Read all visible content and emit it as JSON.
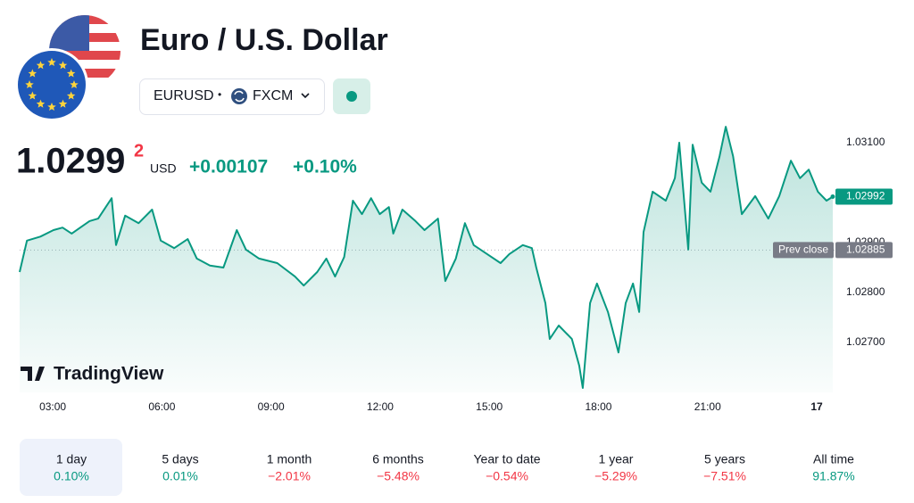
{
  "header": {
    "title": "Euro / U.S. Dollar",
    "symbol": "EURUSD",
    "separator": "•",
    "exchange": "FXCM"
  },
  "quote": {
    "price": "1.0299",
    "price_extra_digit": "2",
    "currency": "USD",
    "change": "+0.00107",
    "change_percent": "+0.10%"
  },
  "logo": "TradingView",
  "chart_data": {
    "type": "line",
    "x": [
      2.09,
      2.29,
      2.66,
      3.02,
      3.27,
      3.52,
      4.01,
      4.25,
      4.62,
      4.74,
      4.99,
      5.36,
      5.73,
      5.97,
      6.34,
      6.71,
      6.96,
      7.32,
      7.69,
      8.06,
      8.31,
      8.67,
      9.17,
      9.66,
      9.9,
      10.27,
      10.52,
      10.76,
      11.01,
      11.25,
      11.5,
      11.75,
      11.99,
      12.24,
      12.36,
      12.61,
      12.97,
      13.22,
      13.59,
      13.79,
      14.08,
      14.33,
      14.57,
      14.94,
      15.31,
      15.55,
      15.92,
      16.17,
      16.29,
      16.54,
      16.66,
      16.91,
      17.27,
      17.47,
      17.57,
      17.77,
      17.96,
      18.26,
      18.55,
      18.75,
      18.95,
      19.12,
      19.24,
      19.49,
      19.85,
      20.1,
      20.22,
      20.47,
      20.59,
      20.84,
      21.08,
      21.33,
      21.5,
      21.7,
      21.94,
      22.31,
      22.67,
      22.97,
      23.29,
      23.54,
      23.78,
      24.03,
      24.27,
      24.44
    ],
    "series": [
      {
        "name": "EURUSD",
        "color": "#089981",
        "values": [
          1.02841,
          1.02904,
          1.02912,
          1.02925,
          1.0293,
          1.02918,
          1.02943,
          1.02948,
          1.02989,
          1.02895,
          1.02954,
          1.02939,
          1.02966,
          1.02904,
          1.02889,
          1.02907,
          1.02868,
          1.02854,
          1.0285,
          1.02925,
          1.02886,
          1.02868,
          1.02859,
          1.02832,
          1.02814,
          1.02841,
          1.02868,
          1.02832,
          1.02871,
          1.02984,
          1.02957,
          1.02989,
          1.02957,
          1.02971,
          1.02918,
          1.02966,
          1.02943,
          1.02925,
          1.02948,
          1.02823,
          1.02868,
          1.02939,
          1.02895,
          1.02877,
          1.02859,
          1.02877,
          1.02895,
          1.02889,
          1.0285,
          1.02779,
          1.02707,
          1.02734,
          1.02707,
          1.02654,
          1.02609,
          1.02779,
          1.02818,
          1.02761,
          1.0268,
          1.02779,
          1.02818,
          1.02761,
          1.02921,
          1.03002,
          1.02984,
          1.03029,
          1.031,
          1.02886,
          1.03096,
          1.0302,
          1.03002,
          1.03073,
          1.03132,
          1.03073,
          1.02957,
          1.02993,
          1.02948,
          1.02993,
          1.03064,
          1.03029,
          1.03046,
          1.03002,
          1.02984,
          1.02992
        ]
      }
    ],
    "xlim": [
      2.09,
      24.49
    ],
    "xticks": [
      {
        "value": 3,
        "label": "03:00"
      },
      {
        "value": 6,
        "label": "06:00"
      },
      {
        "value": 9,
        "label": "09:00"
      },
      {
        "value": 12,
        "label": "12:00"
      },
      {
        "value": 15,
        "label": "15:00"
      },
      {
        "value": 18,
        "label": "18:00"
      },
      {
        "value": 21,
        "label": "21:00"
      },
      {
        "value": 24,
        "label": "17"
      }
    ],
    "ylim": [
      1.026,
      1.0315
    ],
    "yticks": [
      {
        "value": 1.027,
        "label": "1.02700"
      },
      {
        "value": 1.028,
        "label": "1.02800"
      },
      {
        "value": 1.029,
        "label": "1.02900"
      },
      {
        "value": 1.031,
        "label": "1.03100"
      }
    ],
    "last_price": {
      "value": 1.02992,
      "label": "1.02992"
    },
    "prev_close": {
      "name": "Prev close",
      "value": 1.02885,
      "label": "1.02885"
    }
  },
  "periods": [
    {
      "label": "1 day",
      "change": "0.10%",
      "color": "#089981",
      "selected": true
    },
    {
      "label": "5 days",
      "change": "0.01%",
      "color": "#089981",
      "selected": false
    },
    {
      "label": "1 month",
      "change": "−2.01%",
      "color": "#f23645",
      "selected": false
    },
    {
      "label": "6 months",
      "change": "−5.48%",
      "color": "#f23645",
      "selected": false
    },
    {
      "label": "Year to date",
      "change": "−0.54%",
      "color": "#f23645",
      "selected": false
    },
    {
      "label": "1 year",
      "change": "−5.29%",
      "color": "#f23645",
      "selected": false
    },
    {
      "label": "5 years",
      "change": "−7.51%",
      "color": "#f23645",
      "selected": false
    },
    {
      "label": "All time",
      "change": "91.87%",
      "color": "#089981",
      "selected": false
    }
  ]
}
